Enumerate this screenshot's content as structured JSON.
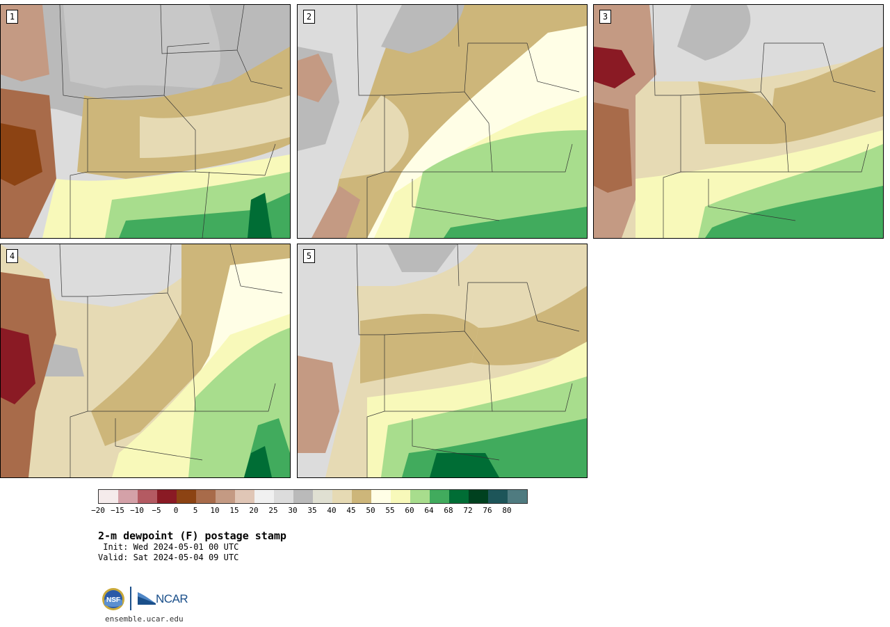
{
  "panels": [
    {
      "id": "1",
      "style": "warm-west"
    },
    {
      "id": "2",
      "style": "moist-east"
    },
    {
      "id": "3",
      "style": "moist-south"
    },
    {
      "id": "4",
      "style": "moist-southeast"
    },
    {
      "id": "5",
      "style": "moist-south"
    }
  ],
  "colorbar": {
    "colors": [
      "#f5ebeb",
      "#d4a1a8",
      "#b45a62",
      "#8a1a24",
      "#8c4313",
      "#a86b4a",
      "#c49a83",
      "#e0c6b6",
      "#f0f0f0",
      "#dcdcdc",
      "#bababa",
      "#e0e0d2",
      "#e6dab4",
      "#cdb67a",
      "#fffee6",
      "#f8f9ba",
      "#a8dd8d",
      "#41ab5d",
      "#006d35",
      "#00411f",
      "#1d5559",
      "#4f7b80"
    ],
    "tick_labels": [
      "-20",
      "-15",
      "-10",
      "-5",
      "0",
      "5",
      "10",
      "15",
      "20",
      "25",
      "30",
      "35",
      "40",
      "45",
      "50",
      "55",
      "60",
      "64",
      "68",
      "72",
      "76",
      "80"
    ]
  },
  "title": "2-m dewpoint (F) postage stamp",
  "init": " Init: Wed 2024-05-01 00 UTC",
  "valid": "Valid: Sat 2024-05-04 09 UTC",
  "logo": {
    "nsf": "NSF",
    "ncar": "NCAR"
  },
  "site": "ensemble.ucar.edu"
}
